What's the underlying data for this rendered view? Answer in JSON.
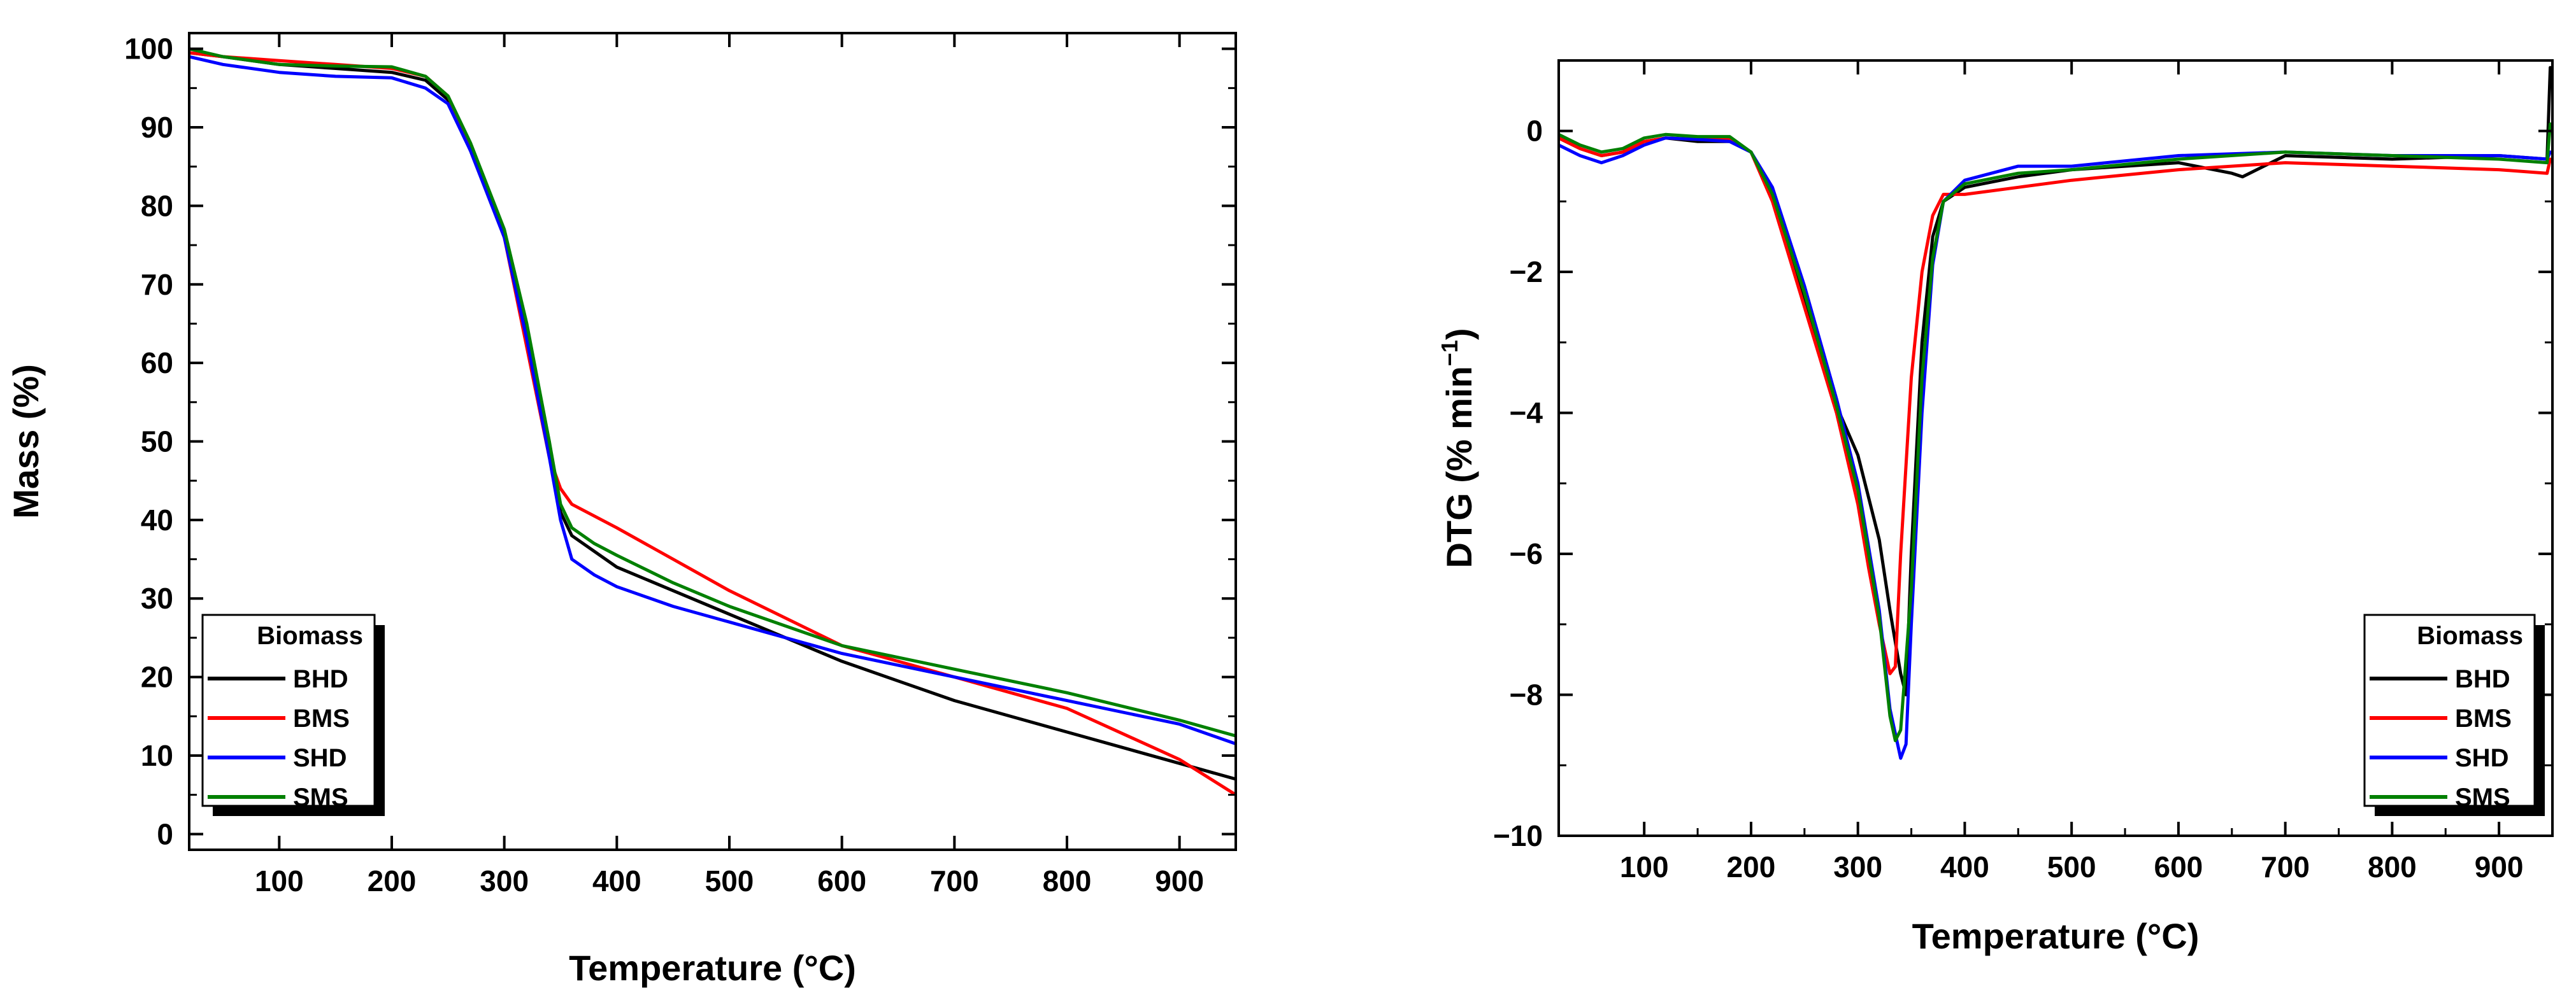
{
  "chart_data": [
    {
      "type": "line",
      "title": "",
      "xlabel": "Temperature (°C)",
      "ylabel": "Mass (%)",
      "xlim": [
        20,
        950
      ],
      "ylim": [
        -2,
        102
      ],
      "xticks": [
        100,
        200,
        300,
        400,
        500,
        600,
        700,
        800,
        900
      ],
      "yticks": [
        0,
        10,
        20,
        30,
        40,
        50,
        60,
        70,
        80,
        90,
        100
      ],
      "legend": {
        "title": "Biomass",
        "placement": "bottom-left"
      },
      "series": [
        {
          "name": "BHD",
          "color": "#000000",
          "x": [
            20,
            50,
            100,
            150,
            200,
            230,
            250,
            270,
            300,
            320,
            340,
            350,
            360,
            380,
            400,
            450,
            500,
            600,
            650,
            700,
            800,
            900,
            950
          ],
          "y": [
            99.5,
            99,
            98,
            97.5,
            97,
            96,
            93.5,
            87,
            76,
            64,
            50,
            41,
            38,
            36,
            34,
            31,
            28,
            22,
            19.5,
            17,
            13,
            9,
            7
          ]
        },
        {
          "name": "BMS",
          "color": "#ff0000",
          "x": [
            20,
            50,
            100,
            150,
            200,
            230,
            250,
            270,
            300,
            320,
            340,
            350,
            360,
            380,
            400,
            450,
            500,
            600,
            650,
            700,
            800,
            900,
            950
          ],
          "y": [
            99.5,
            99,
            98.5,
            98,
            97.5,
            96.5,
            94,
            87.5,
            76,
            62,
            48,
            44,
            42,
            40.5,
            39,
            35,
            31,
            24,
            22,
            20,
            16,
            9.5,
            5
          ]
        },
        {
          "name": "SHD",
          "color": "#0000ff",
          "x": [
            20,
            50,
            100,
            150,
            200,
            230,
            250,
            270,
            300,
            320,
            340,
            350,
            360,
            380,
            400,
            450,
            500,
            600,
            650,
            700,
            800,
            900,
            950
          ],
          "y": [
            99,
            98,
            97,
            96.5,
            96.3,
            95,
            93,
            87,
            76,
            63,
            48,
            40,
            35,
            33,
            31.5,
            29,
            27,
            23,
            21.5,
            20,
            17,
            14,
            11.5
          ]
        },
        {
          "name": "SMS",
          "color": "#008000",
          "x": [
            20,
            50,
            100,
            150,
            200,
            230,
            250,
            270,
            300,
            320,
            340,
            350,
            360,
            380,
            400,
            450,
            500,
            600,
            650,
            700,
            800,
            900,
            950
          ],
          "y": [
            100,
            99,
            98,
            97.8,
            97.7,
            96.5,
            94,
            88,
            77,
            65,
            50,
            42,
            39,
            37,
            35.5,
            32,
            29,
            24,
            22.5,
            21,
            18,
            14.5,
            12.5
          ]
        }
      ]
    },
    {
      "type": "line",
      "title": "",
      "xlabel": "Temperature (°C)",
      "ylabel": "DTG (% min⁻¹)",
      "ylabel_parts": {
        "main": "DTG (% min",
        "sup": "−1",
        "close": ")"
      },
      "xlim": [
        20,
        950
      ],
      "ylim": [
        -10,
        1
      ],
      "xticks": [
        100,
        200,
        300,
        400,
        500,
        600,
        700,
        800,
        900
      ],
      "xticks_minor": [
        150,
        250,
        350,
        450,
        550,
        650,
        750,
        850
      ],
      "yticks": [
        0,
        -2,
        -4,
        -6,
        -8,
        -10
      ],
      "ytick_labels": [
        "0",
        "−2",
        "−4",
        "−6",
        "−8",
        "−10"
      ],
      "legend": {
        "title": "Biomass",
        "placement": "bottom-right"
      },
      "series": [
        {
          "name": "BHD",
          "color": "#000000",
          "x": [
            20,
            40,
            60,
            80,
            100,
            120,
            150,
            180,
            200,
            220,
            250,
            280,
            300,
            320,
            330,
            340,
            345,
            350,
            360,
            370,
            380,
            400,
            450,
            500,
            600,
            650,
            660,
            700,
            800,
            900,
            945,
            948
          ],
          "y": [
            -0.1,
            -0.25,
            -0.35,
            -0.3,
            -0.15,
            -0.1,
            -0.15,
            -0.15,
            -0.3,
            -0.9,
            -2.4,
            -3.9,
            -4.6,
            -5.8,
            -6.8,
            -7.7,
            -8.0,
            -6.0,
            -3.0,
            -1.5,
            -1.0,
            -0.8,
            -0.65,
            -0.55,
            -0.45,
            -0.6,
            -0.65,
            -0.35,
            -0.4,
            -0.35,
            -0.4,
            0.9
          ]
        },
        {
          "name": "BMS",
          "color": "#ff0000",
          "x": [
            20,
            40,
            60,
            80,
            100,
            120,
            150,
            180,
            200,
            220,
            250,
            280,
            300,
            310,
            320,
            330,
            335,
            340,
            350,
            360,
            370,
            380,
            400,
            450,
            500,
            600,
            700,
            800,
            900,
            945,
            948
          ],
          "y": [
            -0.1,
            -0.25,
            -0.35,
            -0.3,
            -0.15,
            -0.1,
            -0.12,
            -0.12,
            -0.3,
            -1.0,
            -2.5,
            -4.0,
            -5.3,
            -6.2,
            -7.0,
            -7.7,
            -7.6,
            -6.0,
            -3.5,
            -2.0,
            -1.2,
            -0.9,
            -0.9,
            -0.8,
            -0.7,
            -0.55,
            -0.45,
            -0.5,
            -0.55,
            -0.6,
            -0.4
          ]
        },
        {
          "name": "SHD",
          "color": "#0000ff",
          "x": [
            20,
            40,
            60,
            80,
            100,
            120,
            150,
            180,
            200,
            220,
            250,
            280,
            300,
            320,
            330,
            340,
            345,
            350,
            360,
            370,
            380,
            400,
            450,
            500,
            600,
            700,
            800,
            900,
            945,
            948
          ],
          "y": [
            -0.2,
            -0.35,
            -0.45,
            -0.35,
            -0.2,
            -0.1,
            -0.12,
            -0.15,
            -0.3,
            -0.8,
            -2.2,
            -3.8,
            -5.0,
            -6.8,
            -8.2,
            -8.9,
            -8.7,
            -7.0,
            -4.0,
            -1.9,
            -1.0,
            -0.7,
            -0.5,
            -0.5,
            -0.35,
            -0.3,
            -0.35,
            -0.35,
            -0.4,
            -0.3
          ]
        },
        {
          "name": "SMS",
          "color": "#008000",
          "x": [
            20,
            40,
            60,
            80,
            100,
            120,
            150,
            180,
            200,
            220,
            250,
            280,
            300,
            320,
            330,
            335,
            340,
            350,
            360,
            370,
            380,
            400,
            450,
            500,
            600,
            700,
            800,
            900,
            945,
            948
          ],
          "y": [
            -0.05,
            -0.2,
            -0.3,
            -0.25,
            -0.1,
            -0.05,
            -0.08,
            -0.08,
            -0.3,
            -0.9,
            -2.3,
            -3.9,
            -5.1,
            -6.9,
            -8.3,
            -8.65,
            -8.5,
            -6.5,
            -3.5,
            -1.8,
            -1.0,
            -0.75,
            -0.6,
            -0.55,
            -0.4,
            -0.3,
            -0.35,
            -0.4,
            -0.45,
            0.1
          ]
        }
      ]
    }
  ]
}
